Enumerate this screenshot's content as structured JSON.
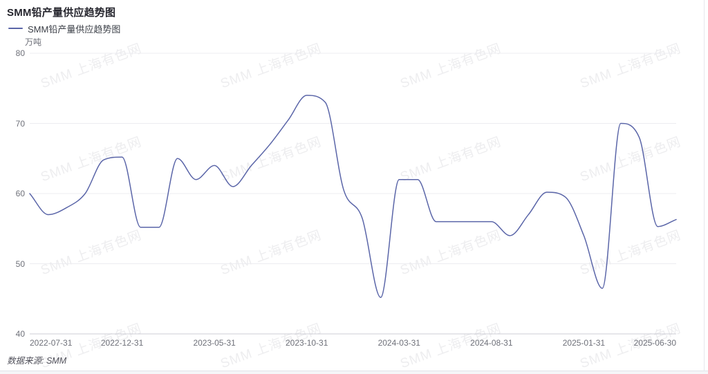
{
  "title": "SMM铅产量供应趋势图",
  "legend": {
    "label": "SMM铅产量供应趋势图"
  },
  "y_axis": {
    "unit": "万吨",
    "ticks": [
      80,
      70,
      60,
      50,
      40
    ]
  },
  "x_axis": {
    "tick_labels": [
      "2022-07-31",
      "2022-12-31",
      "2023-05-31",
      "2023-10-31",
      "2024-03-31",
      "2024-08-31",
      "2025-01-31",
      "2025-06-30"
    ]
  },
  "footer": {
    "text": "数据来源: SMM"
  },
  "watermark": {
    "text": "SMM 上海有色网"
  },
  "colors": {
    "line": "#5a65a8",
    "title_text": "#26262e",
    "legend_text": "#3a3e46",
    "axis_text": "#6e7079",
    "gridline": "#ececf0",
    "axis_line": "#ccccd4",
    "background": "#ffffff"
  },
  "chart_data": {
    "type": "line",
    "title": "SMM铅产量供应趋势图",
    "series_name": "SMM铅产量供应趋势图",
    "unit": "万吨",
    "smooth": true,
    "grid": true,
    "legend_position": "top-left",
    "ylim": [
      40,
      80
    ],
    "y_ticks": [
      40,
      50,
      60,
      70,
      80
    ],
    "x": [
      "2022-07-31",
      "2022-08-31",
      "2022-09-30",
      "2022-10-31",
      "2022-11-30",
      "2022-12-31",
      "2023-01-31",
      "2023-02-28",
      "2023-03-31",
      "2023-04-30",
      "2023-05-31",
      "2023-06-30",
      "2023-07-31",
      "2023-08-31",
      "2023-09-30",
      "2023-10-31",
      "2023-11-30",
      "2023-12-31",
      "2024-01-31",
      "2024-02-29",
      "2024-03-31",
      "2024-04-30",
      "2024-05-31",
      "2024-06-30",
      "2024-07-31",
      "2024-08-31",
      "2024-09-30",
      "2024-10-31",
      "2024-11-30",
      "2024-12-31",
      "2025-01-31",
      "2025-02-28",
      "2025-03-31",
      "2025-04-30",
      "2025-05-31",
      "2025-06-30"
    ],
    "values": [
      60,
      57,
      58,
      60,
      64.8,
      65.2,
      55.2,
      55.2,
      65,
      62,
      64,
      61,
      64,
      67,
      70.5,
      74,
      73,
      60.5,
      56.5,
      45.2,
      62,
      62,
      56,
      56,
      56,
      56,
      54,
      57,
      60.2,
      59.5,
      54,
      46.5,
      70,
      68,
      55.3,
      56.3
    ]
  }
}
